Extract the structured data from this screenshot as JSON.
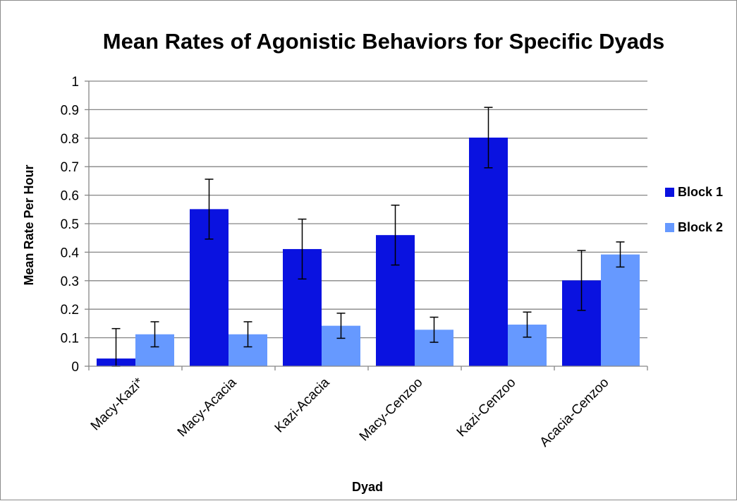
{
  "chart_data": {
    "type": "bar",
    "title": "Mean Rates of Agonistic Behaviors for Specific Dyads",
    "xlabel": "Dyad",
    "ylabel": "Mean Rate Per Hour",
    "ylim": [
      0,
      1
    ],
    "yticks": [
      "0",
      "0.1",
      "0.2",
      "0.3",
      "0.4",
      "0.5",
      "0.6",
      "0.7",
      "0.8",
      "0.9",
      "1"
    ],
    "grid": true,
    "legend_position": "right",
    "categories": [
      "Macy-Kazi*",
      "Macy-Acacia",
      "Kazi-Acacia",
      "Macy-Cenzoo",
      "Kazi-Cenzoo",
      "Acacia-Cenzoo"
    ],
    "series": [
      {
        "name": "Block 1",
        "color": "#0a12e0",
        "values": [
          0.027,
          0.551,
          0.411,
          0.46,
          0.802,
          0.301
        ],
        "error": [
          0.105,
          0.105,
          0.105,
          0.105,
          0.106,
          0.105
        ]
      },
      {
        "name": "Block 2",
        "color": "#6699ff",
        "values": [
          0.112,
          0.112,
          0.142,
          0.128,
          0.146,
          0.392
        ],
        "error": [
          0.044,
          0.044,
          0.044,
          0.044,
          0.044,
          0.044
        ]
      }
    ]
  }
}
